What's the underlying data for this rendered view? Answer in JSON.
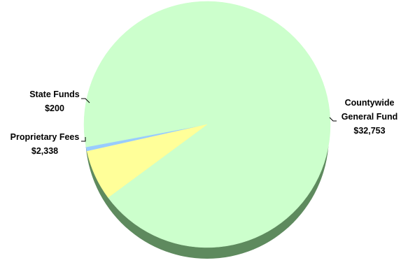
{
  "chart_data": {
    "type": "pie",
    "title": "",
    "slices": [
      {
        "label": "Countywide General Fund",
        "label_lines": [
          "Countywide",
          "General Fund"
        ],
        "value_text": "$32,753",
        "value": 32753,
        "color": "#ccffcc"
      },
      {
        "label": "Proprietary Fees",
        "label_lines": [
          "Proprietary Fees"
        ],
        "value_text": "$2,338",
        "value": 2338,
        "color": "#ffff99"
      },
      {
        "label": "State Funds",
        "label_lines": [
          "State Funds"
        ],
        "value_text": "$200",
        "value": 200,
        "color": "#99ccff"
      }
    ],
    "legend": "none",
    "shadow_color": "#5e8a5e"
  }
}
